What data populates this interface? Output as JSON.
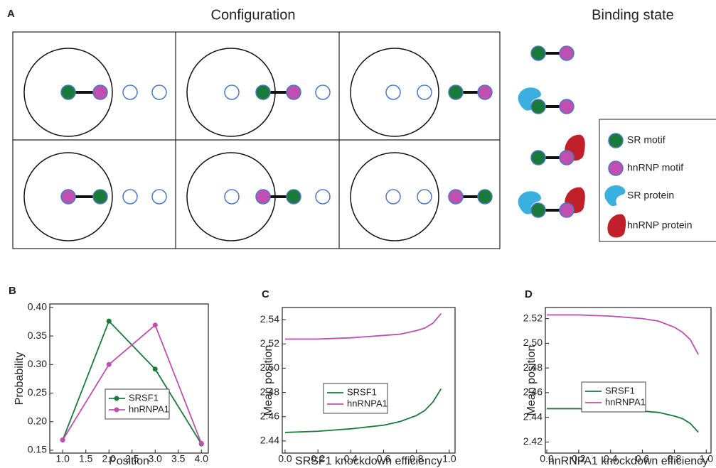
{
  "panel_a": {
    "panel_label": "A",
    "title": "Configuration",
    "binding_title": "Binding state",
    "legend": [
      "SR motif",
      "hnRNP motif",
      "SR protein",
      "hnRNP protein"
    ]
  },
  "chart_data": [
    {
      "type": "line",
      "panel_label": "B",
      "xlabel": "Position",
      "ylabel": "Probability",
      "x": [
        1,
        2,
        3,
        4
      ],
      "markers": true,
      "legend": "center",
      "series": [
        {
          "name": "SRSF1",
          "color": "#1a7a3a",
          "values": [
            0.168,
            0.376,
            0.292,
            0.161
          ]
        },
        {
          "name": "hnRNPA1",
          "color": "#c050b0",
          "values": [
            0.168,
            0.3,
            0.369,
            0.162
          ]
        }
      ],
      "xlim": [
        0.72,
        4.15
      ],
      "xticks": [
        {
          "value": 1,
          "label": "1.0"
        },
        1.5,
        {
          "value": 2,
          "label": "2.0"
        },
        2.5,
        {
          "value": 3,
          "label": "3.0"
        },
        3.5,
        {
          "value": 4,
          "label": "4.0"
        }
      ],
      "ylim": [
        0.145,
        0.406
      ],
      "yticks": [
        0.15,
        {
          "value": 0.2,
          "label": "0.20"
        },
        0.25,
        {
          "value": 0.3,
          "label": "0.30"
        },
        0.35,
        {
          "value": 0.4,
          "label": "0.40"
        }
      ]
    },
    {
      "type": "line",
      "panel_label": "C",
      "xlabel": "SRSF1 knockdown efficiency",
      "ylabel": "Mean position",
      "x": [
        0,
        0.2,
        0.4,
        0.6,
        0.7,
        0.8,
        0.85,
        0.9,
        0.95
      ],
      "markers": false,
      "legend": "center",
      "series": [
        {
          "name": "SRSF1",
          "color": "#1a7a3a",
          "values": [
            2.447,
            2.448,
            2.45,
            2.453,
            2.456,
            2.461,
            2.465,
            2.472,
            2.483
          ]
        },
        {
          "name": "hnRNPA1",
          "color": "#c050b0",
          "values": [
            2.524,
            2.524,
            2.525,
            2.527,
            2.528,
            2.531,
            2.533,
            2.537,
            2.545
          ]
        }
      ],
      "xlim": [
        -0.017,
        1.035
      ],
      "xticks": [
        {
          "value": 0,
          "label": "0.0"
        },
        0.2,
        0.4,
        0.6,
        0.8,
        {
          "value": 1,
          "label": "1.0"
        }
      ],
      "ylim": [
        2.43,
        2.55
      ],
      "yticks": [
        2.44,
        2.46,
        2.48,
        {
          "value": 2.5,
          "label": "2.50"
        },
        2.52,
        2.54
      ]
    },
    {
      "type": "line",
      "panel_label": "D",
      "xlabel": "hnRNPA1 knockdown efficiency",
      "ylabel": "Mean position",
      "x": [
        0,
        0.2,
        0.4,
        0.6,
        0.7,
        0.8,
        0.85,
        0.9,
        0.95
      ],
      "markers": false,
      "legend": "center",
      "series": [
        {
          "name": "SRSF1",
          "color": "#1a7a3a",
          "values": [
            2.447,
            2.447,
            2.446,
            2.445,
            2.444,
            2.441,
            2.439,
            2.435,
            2.428
          ]
        },
        {
          "name": "hnRNPA1",
          "color": "#c050b0",
          "values": [
            2.523,
            2.523,
            2.522,
            2.52,
            2.518,
            2.513,
            2.509,
            2.503,
            2.491
          ]
        }
      ],
      "xlim": [
        -0.009,
        1.03
      ],
      "xticks": [
        {
          "value": 0,
          "label": "0.0"
        },
        0.2,
        0.4,
        0.6,
        0.8,
        {
          "value": 1,
          "label": "1.0"
        }
      ],
      "ylim": [
        2.411,
        2.529
      ],
      "yticks": [
        2.42,
        2.44,
        2.46,
        2.48,
        {
          "value": 2.5,
          "label": "2.50"
        },
        2.52
      ]
    }
  ]
}
